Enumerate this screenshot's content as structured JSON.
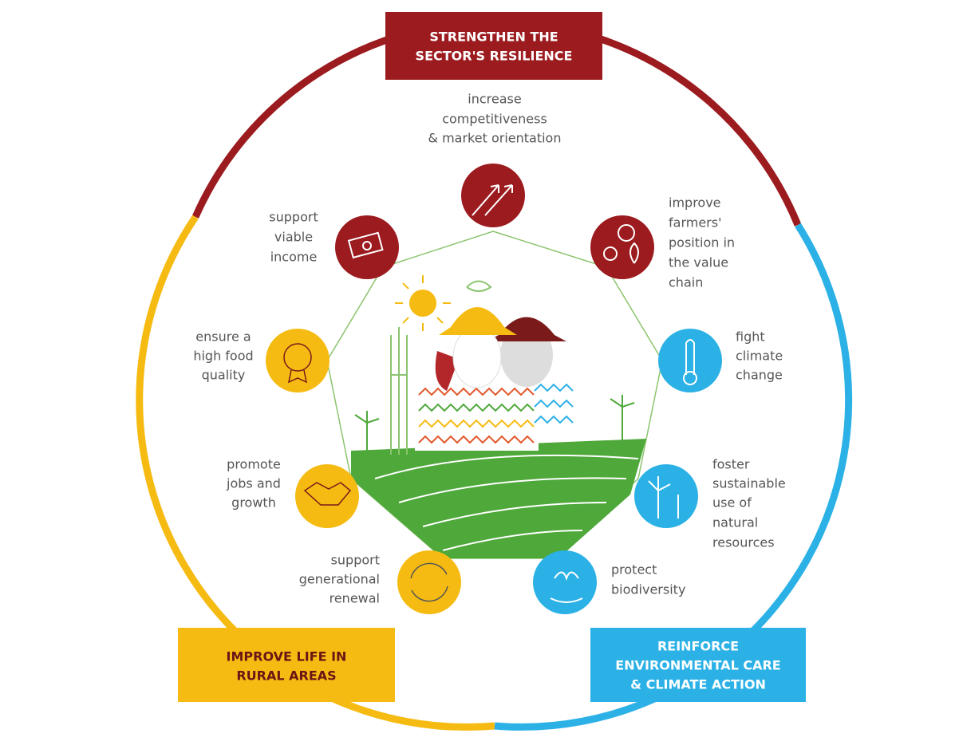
{
  "pillars": [
    {
      "lines": [
        "STRENGTHEN THE",
        "SECTOR'S RESILIENCE"
      ]
    },
    {
      "lines": [
        "IMPROVE LIFE IN",
        "RURAL AREAS"
      ]
    },
    {
      "lines": [
        "REINFORCE",
        "ENVIRONMENTAL CARE",
        "& CLIMATE ACTION"
      ]
    }
  ],
  "objectives": [
    {
      "lines": [
        "increase",
        "competitiveness",
        "& market orientation"
      ]
    },
    {
      "lines": [
        "improve",
        "farmers'",
        "position in",
        "the value",
        "chain"
      ]
    },
    {
      "lines": [
        "fight",
        "climate",
        "change"
      ]
    },
    {
      "lines": [
        "foster",
        "sustainable",
        "use of",
        "natural",
        "resources"
      ]
    },
    {
      "lines": [
        "protect",
        "biodiversity"
      ]
    },
    {
      "lines": [
        "support",
        "generational",
        "renewal"
      ]
    },
    {
      "lines": [
        "promote",
        "jobs and",
        "growth"
      ]
    },
    {
      "lines": [
        "ensure a",
        "high food",
        "quality"
      ]
    },
    {
      "lines": [
        "support",
        "viable",
        "income"
      ]
    }
  ]
}
